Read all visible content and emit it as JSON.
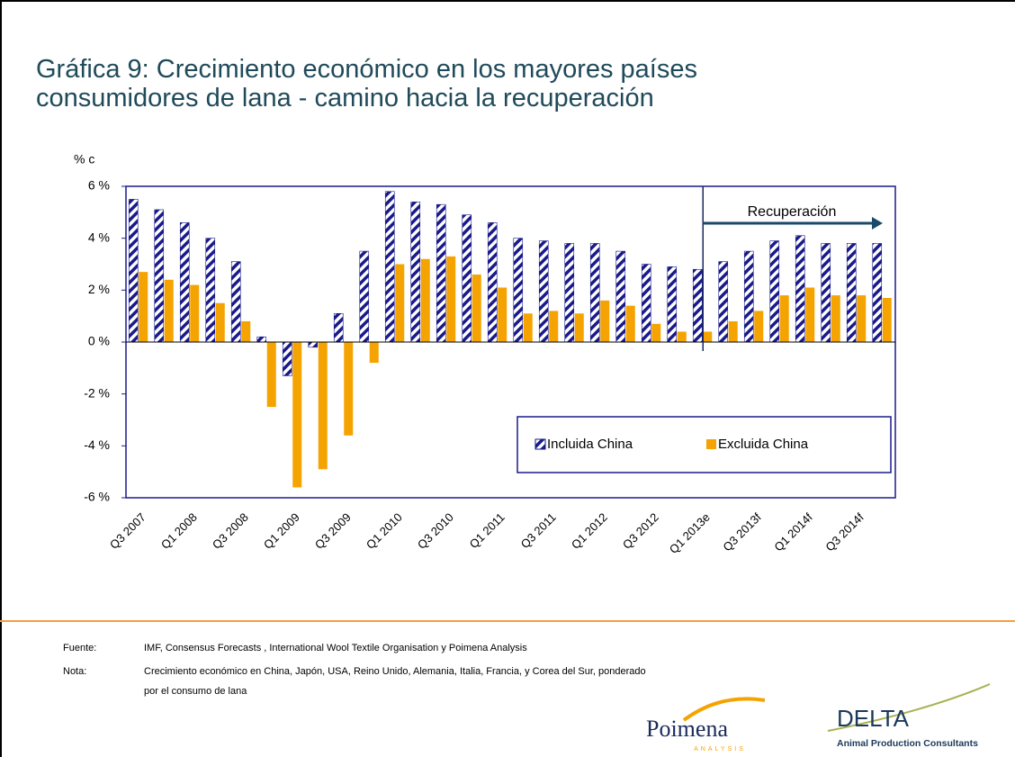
{
  "chart_data": {
    "type": "bar",
    "title": "Gráfica 9: Crecimiento económico en los mayores países",
    "subtitle": "consumidores de lana  - camino hacia la recuperación",
    "y_label": "% c",
    "annotation": "Recuperación",
    "categories": [
      "Q3 2007",
      null,
      "Q1 2008",
      null,
      "Q3 2008",
      null,
      "Q1 2009",
      null,
      "Q3 2009",
      null,
      "Q1 2010",
      null,
      "Q3 2010",
      null,
      "Q1 2011",
      null,
      "Q3 2011",
      null,
      "Q1 2012",
      null,
      "Q3 2012",
      null,
      "Q1 2013e",
      null,
      "Q3 2013f",
      null,
      "Q1 2014f",
      null,
      "Q3 2014f",
      null
    ],
    "series": [
      {
        "name": "Incluida China",
        "color": "#1a1a8a",
        "values": [
          5.5,
          5.1,
          4.6,
          4.0,
          3.1,
          0.2,
          -1.3,
          -0.2,
          1.1,
          3.5,
          5.8,
          5.4,
          5.3,
          4.9,
          4.6,
          4.0,
          3.9,
          3.8,
          3.8,
          3.5,
          3.0,
          2.9,
          2.8,
          3.1,
          3.5,
          3.9,
          4.1,
          3.8,
          3.8,
          3.8
        ]
      },
      {
        "name": "Excluida China",
        "color": "#f5a300",
        "values": [
          2.7,
          2.4,
          2.2,
          1.5,
          0.8,
          -2.5,
          -5.6,
          -4.9,
          -3.6,
          -0.8,
          3.0,
          3.2,
          3.3,
          2.6,
          2.1,
          1.1,
          1.2,
          1.1,
          1.6,
          1.4,
          0.7,
          0.4,
          0.4,
          0.8,
          1.2,
          1.8,
          2.1,
          1.8,
          1.8,
          1.7
        ]
      }
    ],
    "ylim": [
      -6,
      6
    ],
    "yticks": [
      {
        "value": -6,
        "label": "-6 %"
      },
      {
        "value": -4,
        "label": "-4 %"
      },
      {
        "value": -2,
        "label": "-2 %"
      },
      {
        "value": 0,
        "label": "0 %"
      },
      {
        "value": 2,
        "label": "2 %"
      },
      {
        "value": 4,
        "label": "4 %"
      },
      {
        "value": 6,
        "label": "6 %"
      }
    ],
    "legend": "lower right"
  },
  "footer": {
    "source_label": "Fuente:",
    "source": "IMF, Consensus Forecasts , International Wool Textile Organisation y Poimena Analysis",
    "note_label": "Nota:",
    "note": "Crecimiento económico en China, Japón, USA, Reino Unido, Alemania, Italia, Francia, y Corea del Sur, ponderado",
    "note2": "por el consumo de lana"
  },
  "logos": {
    "poimena": "Poimena",
    "poimena_sub": "ANALYSIS",
    "delta": "DELTA",
    "delta_sub": "Animal Production Consultants"
  }
}
